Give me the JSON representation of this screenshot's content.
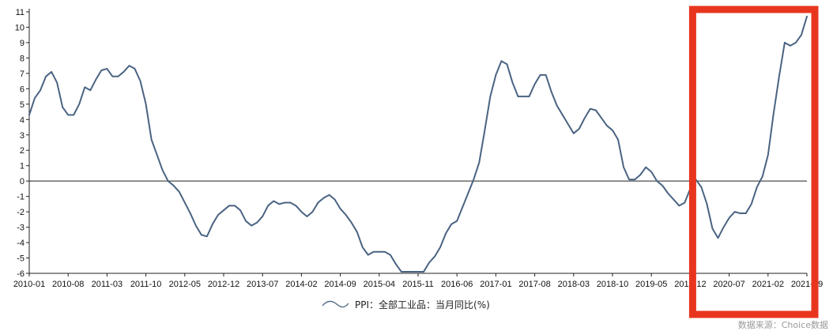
{
  "chart_data": {
    "type": "line",
    "title": "",
    "xlabel": "",
    "ylabel": "",
    "ylim": [
      -6,
      11
    ],
    "y_ticks": [
      11,
      10,
      9,
      8,
      7,
      6,
      5,
      4,
      3,
      2,
      1,
      0,
      -1,
      -2,
      -3,
      -4,
      -5,
      -6
    ],
    "x_tick_labels": [
      "2010-01",
      "2010-08",
      "2011-03",
      "2011-10",
      "2012-05",
      "2012-12",
      "2013-07",
      "2014-02",
      "2014-09",
      "2015-04",
      "2015-11",
      "2016-06",
      "2017-01",
      "2017-08",
      "2018-03",
      "2018-10",
      "2019-05",
      "2019-12",
      "2020-07",
      "2021-02",
      "2021-09"
    ],
    "grid": false,
    "zero_line": true,
    "legend_position": "bottom-center",
    "series": [
      {
        "name": "PPI：全部工业品：当月同比(%)",
        "color": "#4a6382",
        "x": [
          "2010-01",
          "2010-02",
          "2010-03",
          "2010-04",
          "2010-05",
          "2010-06",
          "2010-07",
          "2010-08",
          "2010-09",
          "2010-10",
          "2010-11",
          "2010-12",
          "2011-01",
          "2011-02",
          "2011-03",
          "2011-04",
          "2011-05",
          "2011-06",
          "2011-07",
          "2011-08",
          "2011-09",
          "2011-10",
          "2011-11",
          "2011-12",
          "2012-01",
          "2012-02",
          "2012-03",
          "2012-04",
          "2012-05",
          "2012-06",
          "2012-07",
          "2012-08",
          "2012-09",
          "2012-10",
          "2012-11",
          "2012-12",
          "2013-01",
          "2013-02",
          "2013-03",
          "2013-04",
          "2013-05",
          "2013-06",
          "2013-07",
          "2013-08",
          "2013-09",
          "2013-10",
          "2013-11",
          "2013-12",
          "2014-01",
          "2014-02",
          "2014-03",
          "2014-04",
          "2014-05",
          "2014-06",
          "2014-07",
          "2014-08",
          "2014-09",
          "2014-10",
          "2014-11",
          "2014-12",
          "2015-01",
          "2015-02",
          "2015-03",
          "2015-04",
          "2015-05",
          "2015-06",
          "2015-07",
          "2015-08",
          "2015-09",
          "2015-10",
          "2015-11",
          "2015-12",
          "2016-01",
          "2016-02",
          "2016-03",
          "2016-04",
          "2016-05",
          "2016-06",
          "2016-07",
          "2016-08",
          "2016-09",
          "2016-10",
          "2016-11",
          "2016-12",
          "2017-01",
          "2017-02",
          "2017-03",
          "2017-04",
          "2017-05",
          "2017-06",
          "2017-07",
          "2017-08",
          "2017-09",
          "2017-10",
          "2017-11",
          "2017-12",
          "2018-01",
          "2018-02",
          "2018-03",
          "2018-04",
          "2018-05",
          "2018-06",
          "2018-07",
          "2018-08",
          "2018-09",
          "2018-10",
          "2018-11",
          "2018-12",
          "2019-01",
          "2019-02",
          "2019-03",
          "2019-04",
          "2019-05",
          "2019-06",
          "2019-07",
          "2019-08",
          "2019-09",
          "2019-10",
          "2019-11",
          "2019-12",
          "2020-01",
          "2020-02",
          "2020-03",
          "2020-04",
          "2020-05",
          "2020-06",
          "2020-07",
          "2020-08",
          "2020-09",
          "2020-10",
          "2020-11",
          "2020-12",
          "2021-01",
          "2021-02",
          "2021-03",
          "2021-04",
          "2021-05",
          "2021-06",
          "2021-07",
          "2021-08",
          "2021-09"
        ],
        "values": [
          4.3,
          5.4,
          5.9,
          6.8,
          7.1,
          6.4,
          4.8,
          4.3,
          4.3,
          5.0,
          6.1,
          5.9,
          6.6,
          7.2,
          7.3,
          6.8,
          6.8,
          7.1,
          7.5,
          7.3,
          6.5,
          5.0,
          2.7,
          1.7,
          0.7,
          0.0,
          -0.3,
          -0.7,
          -1.4,
          -2.1,
          -2.9,
          -3.5,
          -3.6,
          -2.8,
          -2.2,
          -1.9,
          -1.6,
          -1.6,
          -1.9,
          -2.6,
          -2.9,
          -2.7,
          -2.3,
          -1.6,
          -1.3,
          -1.5,
          -1.4,
          -1.4,
          -1.6,
          -2.0,
          -2.3,
          -2.0,
          -1.4,
          -1.1,
          -0.9,
          -1.2,
          -1.8,
          -2.2,
          -2.7,
          -3.3,
          -4.3,
          -4.8,
          -4.6,
          -4.6,
          -4.6,
          -4.8,
          -5.4,
          -5.9,
          -5.9,
          -5.9,
          -5.9,
          -5.9,
          -5.3,
          -4.9,
          -4.3,
          -3.4,
          -2.8,
          -2.6,
          -1.7,
          -0.8,
          0.1,
          1.2,
          3.3,
          5.5,
          6.9,
          7.8,
          7.6,
          6.4,
          5.5,
          5.5,
          5.5,
          6.3,
          6.9,
          6.9,
          5.8,
          4.9,
          4.3,
          3.7,
          3.1,
          3.4,
          4.1,
          4.7,
          4.6,
          4.1,
          3.6,
          3.3,
          2.7,
          0.9,
          0.1,
          0.1,
          0.4,
          0.9,
          0.6,
          0.0,
          -0.3,
          -0.8,
          -1.2,
          -1.6,
          -1.4,
          -0.5,
          0.1,
          -0.4,
          -1.5,
          -3.1,
          -3.7,
          -3.0,
          -2.4,
          -2.0,
          -2.1,
          -2.1,
          -1.5,
          -0.4,
          0.3,
          1.7,
          4.4,
          6.8,
          9.0,
          8.8,
          9.0,
          9.5,
          10.7
        ]
      }
    ]
  },
  "highlight": {
    "color": "#e8361e",
    "from": "2019-12",
    "to": "2021-09"
  },
  "watermark": "数据来源：Choice数据"
}
